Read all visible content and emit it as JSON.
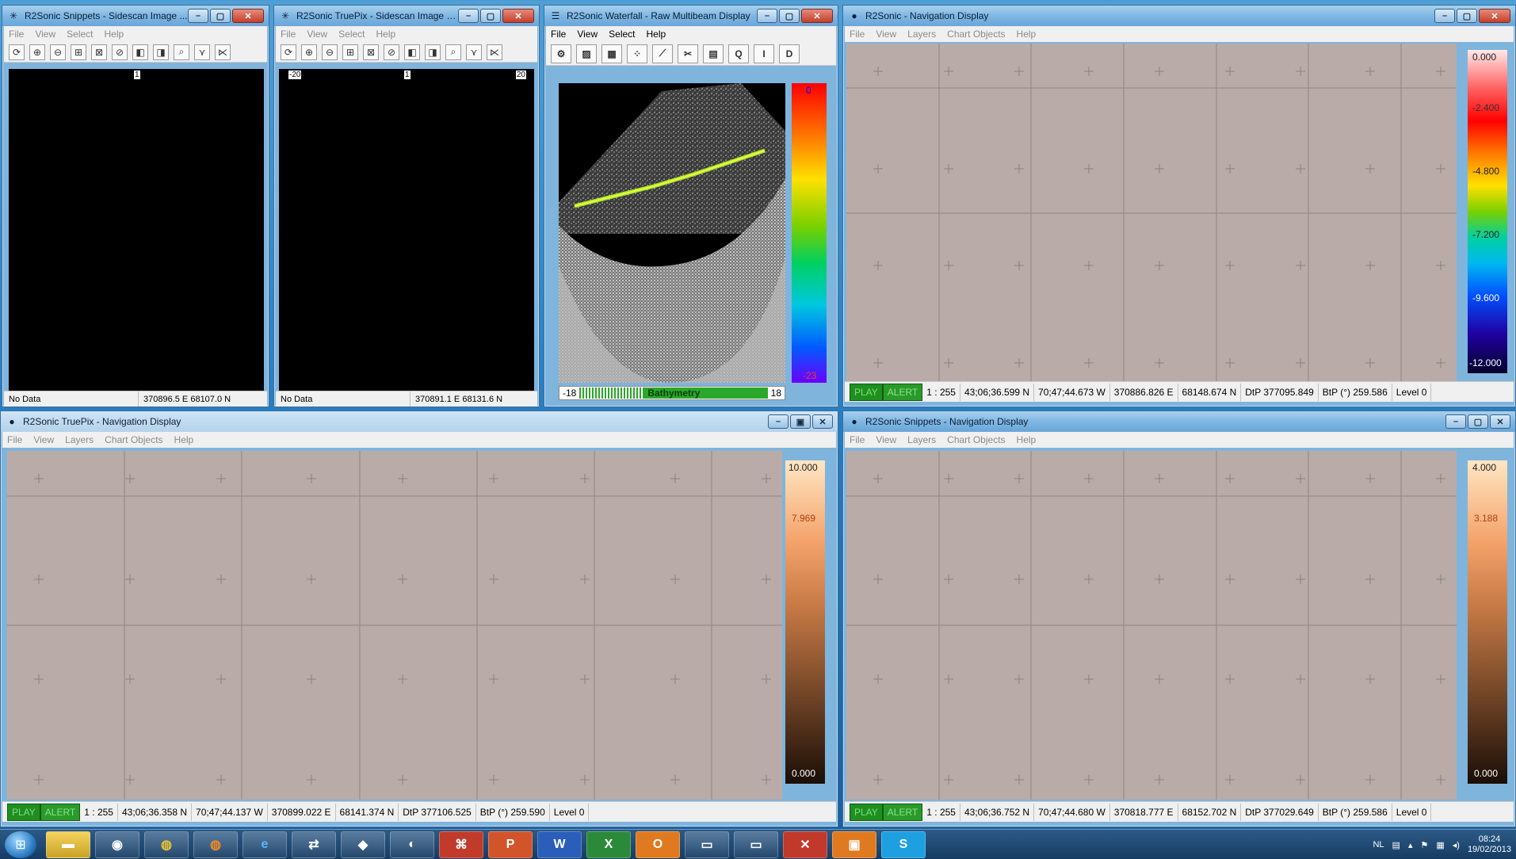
{
  "windows": {
    "snippets_sidescan": {
      "title": "R2Sonic Snippets - Sidescan Image ...",
      "menu": [
        "File",
        "View",
        "Select",
        "Help"
      ],
      "tick_center": "1",
      "status_left": "No Data",
      "status_right": "370896.5 E 68107.0 N"
    },
    "truepix_sidescan": {
      "title": "R2Sonic TruePix - Sidescan Image Di...",
      "menu": [
        "File",
        "View",
        "Select",
        "Help"
      ],
      "tick_left": "-20",
      "tick_center": "1",
      "tick_right": "20",
      "status_left": "No Data",
      "status_right": "370891.1 E 68131.6 N"
    },
    "waterfall": {
      "title": "R2Sonic Waterfall - Raw Multibeam Display",
      "menu": [
        "File",
        "View",
        "Select",
        "Help"
      ],
      "tool_q": "Q",
      "tool_i": "I",
      "tool_d": "D",
      "scale_top": "0",
      "scale_bottom": "-23",
      "range_left": "-18",
      "range_label": "Bathymetry",
      "range_right": "18"
    },
    "nav_main": {
      "title": "R2Sonic - Navigation Display",
      "menu": [
        "File",
        "View",
        "Layers",
        "Chart Objects",
        "Help"
      ],
      "colorbar_labels": [
        "0.000",
        "-2.400",
        "-4.800",
        "-7.200",
        "-9.600",
        "-12.000"
      ],
      "status": {
        "play": "PLAY",
        "alert": "ALERT",
        "scale": "1 : 255",
        "lat": "43;06;36.599 N",
        "lon": "70;47;44.673 W",
        "easting": "370886.826 E",
        "northing": "68148.674 N",
        "dtp": "DtP 377095.849",
        "btp": "BtP (°) 259.586",
        "level": "Level 0"
      }
    },
    "truepix_nav": {
      "title": "R2Sonic TruePix - Navigation Display",
      "menu": [
        "File",
        "View",
        "Layers",
        "Chart Objects",
        "Help"
      ],
      "colorbar_labels": [
        "10.000",
        "7.969",
        "0.000"
      ],
      "status": {
        "play": "PLAY",
        "alert": "ALERT",
        "scale": "1 : 255",
        "lat": "43;06;36.358 N",
        "lon": "70;47;44.137 W",
        "easting": "370899.022 E",
        "northing": "68141.374 N",
        "dtp": "DtP 377106.525",
        "btp": "BtP (°) 259.590",
        "level": "Level 0"
      }
    },
    "snippets_nav": {
      "title": "R2Sonic Snippets - Navigation Display",
      "menu": [
        "File",
        "View",
        "Layers",
        "Chart Objects",
        "Help"
      ],
      "colorbar_labels": [
        "4.000",
        "3.188",
        "0.000"
      ],
      "status": {
        "play": "PLAY",
        "alert": "ALERT",
        "scale": "1 : 255",
        "lat": "43;06;36.752 N",
        "lon": "70;47;44.680 W",
        "easting": "370818.777 E",
        "northing": "68152.702 N",
        "dtp": "DtP 377029.649",
        "btp": "BtP (°) 259.586",
        "level": "Level 0"
      }
    }
  },
  "taskbar": {
    "items": [
      "",
      "",
      "",
      "",
      "",
      "",
      "",
      "",
      "",
      "W",
      "",
      "",
      "",
      "",
      "",
      "",
      "",
      "S",
      "",
      "",
      "",
      "",
      "",
      "",
      ""
    ],
    "tray": {
      "lang": "NL",
      "time": "08:24",
      "date": "19/02/2013"
    }
  },
  "colors": {
    "map_bg": "#b9aca8",
    "play_green": "#1f8f1f",
    "accent_blue": "#2a7fc3"
  }
}
